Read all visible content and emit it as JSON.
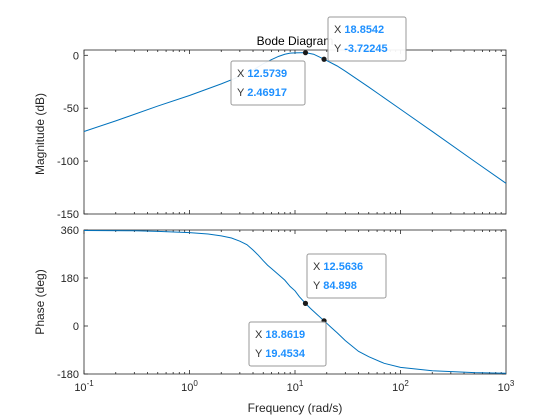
{
  "chart_data": {
    "type": "line",
    "title": "Bode Diagram",
    "xlabel": "Frequency  (rad/s)",
    "x_scale": "log",
    "xlim": [
      0.1,
      1000
    ],
    "x_ticks": [
      0.1,
      1,
      10,
      100,
      1000
    ],
    "x_tick_labels": [
      {
        "base": "10",
        "exp": "-1"
      },
      {
        "base": "10",
        "exp": "0"
      },
      {
        "base": "10",
        "exp": "1"
      },
      {
        "base": "10",
        "exp": "2"
      },
      {
        "base": "10",
        "exp": "3"
      }
    ],
    "line_color": "#0072bd",
    "panels": [
      {
        "id": "magnitude",
        "ylabel": "Magnitude (dB)",
        "ylim": [
          -150,
          5
        ],
        "y_ticks": [
          0,
          -50,
          -100,
          -150
        ],
        "y_tick_labels": [
          "0",
          "-50",
          "-100",
          "-150"
        ],
        "series": [
          {
            "x": [
              0.1,
              0.2,
              0.5,
              1,
              2,
              3,
              4,
              5,
              6,
              7,
              8,
              9,
              10,
              12.5739,
              15,
              18.8542,
              25,
              30,
              50,
              100,
              200,
              500,
              1000
            ],
            "y": [
              -72,
              -62,
              -48,
              -38,
              -27,
              -20,
              -14,
              -8,
              -4,
              -1,
              1,
              2,
              2.3,
              2.46917,
              1,
              -3.72245,
              -10,
              -15,
              -30,
              -51,
              -72,
              -100,
              -121
            ]
          }
        ],
        "datatips": [
          {
            "x_key": "X",
            "x_value": "12.5739",
            "y_key": "Y",
            "y_value": "2.46917",
            "x": 12.5739,
            "y": 2.46917
          },
          {
            "x_key": "X",
            "x_value": "18.8542",
            "y_key": "Y",
            "y_value": "-3.72245",
            "x": 18.8542,
            "y": -3.72245
          }
        ]
      },
      {
        "id": "phase",
        "ylabel": "Phase (deg)",
        "ylim": [
          -180,
          360
        ],
        "y_ticks": [
          360,
          180,
          0,
          -180
        ],
        "y_tick_labels": [
          "360",
          "180",
          "0",
          "-180"
        ],
        "series": [
          {
            "x": [
              0.1,
              0.3,
              0.5,
              1,
              1.5,
              2,
              2.5,
              3,
              3.5,
              4,
              4.5,
              5,
              5.5,
              6,
              7,
              8,
              9,
              10,
              11,
              12.5636,
              14,
              16,
              18.8619,
              22,
              25,
              30,
              40,
              50,
              70,
              100,
              200,
              500,
              1000
            ],
            "y": [
              358,
              357,
              355,
              350,
              345,
              338,
              330,
              318,
              305,
              285,
              265,
              245,
              228,
              215,
              192,
              172,
              148,
              132,
              110,
              84.898,
              66,
              45,
              19.4534,
              -5,
              -25,
              -55,
              -95,
              -115,
              -140,
              -155,
              -168,
              -175,
              -177
            ]
          }
        ],
        "datatips": [
          {
            "x_key": "X",
            "x_value": "12.5636",
            "y_key": "Y",
            "y_value": "84.898",
            "x": 12.5636,
            "y": 84.898
          },
          {
            "x_key": "X",
            "x_value": "18.8619",
            "y_key": "Y",
            "y_value": "19.4534",
            "x": 18.8619,
            "y": 19.4534
          }
        ]
      }
    ]
  }
}
